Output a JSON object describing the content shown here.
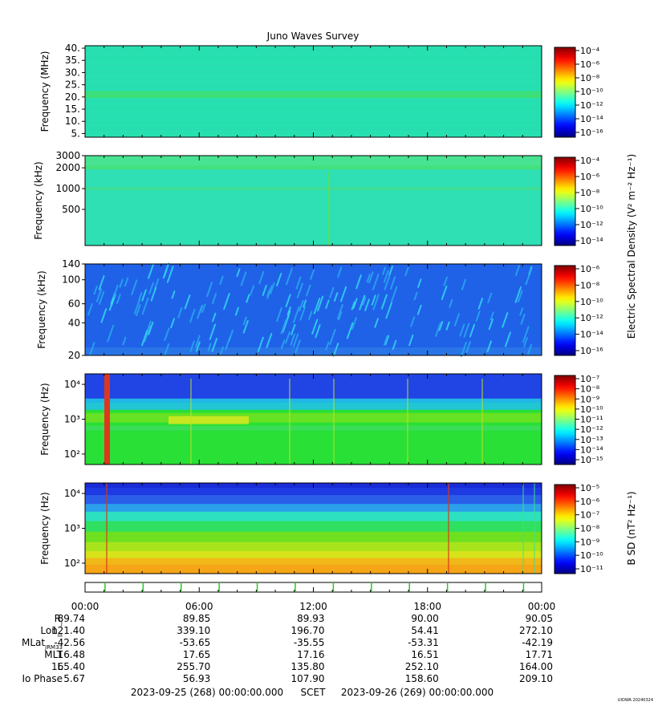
{
  "title": "Juno Waves Survey",
  "footer_left": "2023-09-25 (268) 00:00:00.000",
  "footer_mid": "SCET",
  "footer_right": "2023-09-26 (269) 00:00:00.000",
  "corner_mark": "UIOWA 20240324",
  "shared_colorbar_label": "Electric Spectral Density (V² m⁻² Hz⁻¹)",
  "chart_data": [
    {
      "type": "heatmap",
      "ylabel": "Frequency (MHz)",
      "yscale": "linear",
      "ylim": [
        3.5,
        41
      ],
      "yticks": [
        5,
        10,
        15,
        20,
        25,
        30,
        35,
        40
      ],
      "yticklabels": [
        "5.",
        "10.",
        "15.",
        "20.",
        "25.",
        "30.",
        "35.",
        "40."
      ],
      "colorbar_ticks": [
        "10⁻⁴",
        "10⁻⁶",
        "10⁻⁸",
        "10⁻¹⁰",
        "10⁻¹²",
        "10⁻¹⁴",
        "10⁻¹⁶"
      ],
      "colorbar_range_exp": [
        -17,
        -4
      ]
    },
    {
      "type": "heatmap",
      "ylabel": "Frequency (kHz)",
      "yscale": "log",
      "ylim": [
        150,
        3000
      ],
      "yticks": [
        500,
        1000,
        2000,
        3000
      ],
      "yticklabels": [
        "500",
        "1000",
        "2000",
        "3000"
      ],
      "colorbar_ticks": [
        "10⁻⁴",
        "10⁻⁶",
        "10⁻⁸",
        "10⁻¹⁰",
        "10⁻¹²",
        "10⁻¹⁴"
      ],
      "colorbar_range_exp": [
        -15,
        -3
      ]
    },
    {
      "type": "heatmap",
      "ylabel": "Frequency (kHz)",
      "yscale": "log",
      "ylim": [
        20,
        140
      ],
      "yticks": [
        20,
        40,
        60,
        100,
        140
      ],
      "yticklabels": [
        "20",
        "40",
        "60",
        "100",
        "140"
      ],
      "colorbar_ticks": [
        "10⁻⁶",
        "10⁻⁸",
        "10⁻¹⁰",
        "10⁻¹²",
        "10⁻¹⁴",
        "10⁻¹⁶"
      ],
      "colorbar_range_exp": [
        -16,
        -6
      ]
    },
    {
      "type": "heatmap",
      "ylabel": "Frequency (Hz)",
      "yscale": "log",
      "ylim": [
        50,
        20000
      ],
      "yticks": [
        100,
        1000,
        10000
      ],
      "yticklabels": [
        "10²",
        "10³",
        "10⁴"
      ],
      "colorbar_ticks": [
        "10⁻⁷",
        "10⁻⁸",
        "10⁻⁹",
        "10⁻¹⁰",
        "10⁻¹¹",
        "10⁻¹²",
        "10⁻¹³",
        "10⁻¹⁴",
        "10⁻¹⁵"
      ],
      "colorbar_range_exp": [
        -15,
        -7
      ]
    },
    {
      "type": "heatmap",
      "ylabel": "Frequency (Hz)",
      "yscale": "log",
      "ylim": [
        50,
        20000
      ],
      "yticks": [
        100,
        1000,
        10000
      ],
      "yticklabels": [
        "10²",
        "10³",
        "10⁴"
      ],
      "colorbar_label": "B SD (nT² Hz⁻¹)",
      "colorbar_ticks": [
        "10⁻⁵",
        "10⁻⁶",
        "10⁻⁷",
        "10⁻⁸",
        "10⁻⁹",
        "10⁻¹⁰",
        "10⁻¹¹"
      ],
      "colorbar_range_exp": [
        -11,
        -4.5
      ]
    }
  ],
  "time_axis": {
    "ticks": [
      "00:00",
      "06:00",
      "12:00",
      "18:00",
      "00:00"
    ],
    "green_marks_hours": [
      1.0,
      3.0,
      5.0,
      7.0,
      9.0,
      11.0,
      13.0,
      15.0,
      17.0,
      19.0,
      21.0,
      23.0
    ]
  },
  "ephemeris": [
    {
      "label": "R",
      "sub": "J",
      "values": [
        "89.74",
        "89.85",
        "89.93",
        "90.00",
        "90.05"
      ]
    },
    {
      "label": "Lon",
      "sub": "III",
      "values": [
        "121.40",
        "339.10",
        "196.70",
        "54.41",
        "272.10"
      ]
    },
    {
      "label": "MLat",
      "sub": "JRM33",
      "values": [
        "-42.56",
        "-53.65",
        "-35.55",
        "-53.31",
        "-42.19"
      ]
    },
    {
      "label": "MLT",
      "sub": "",
      "values": [
        "16.48",
        "17.65",
        "17.16",
        "16.51",
        "17.71"
      ]
    },
    {
      "label": "L",
      "sub": "",
      "values": [
        "165.40",
        "255.70",
        "135.80",
        "252.10",
        "164.00"
      ]
    },
    {
      "label": "Io Phase",
      "sub": "",
      "values": [
        "5.67",
        "56.93",
        "107.90",
        "158.60",
        "209.10"
      ]
    }
  ]
}
